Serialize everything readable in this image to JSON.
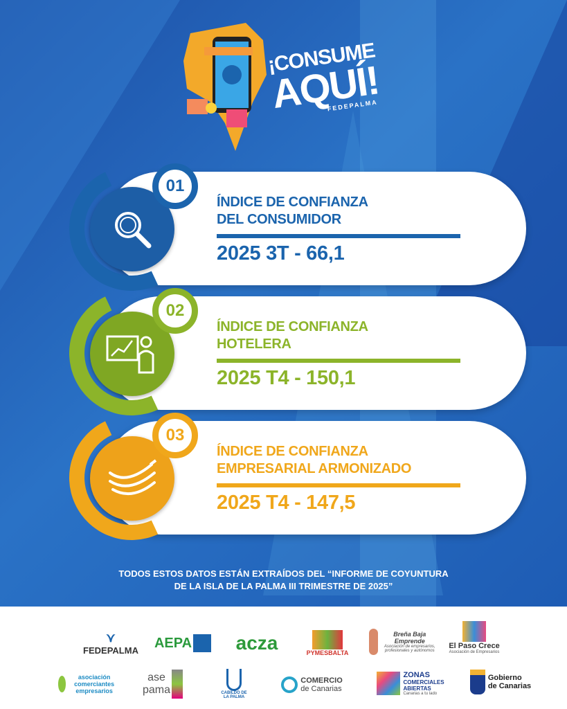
{
  "hero": {
    "line1": "¡CONSUME",
    "line2": "AQUÍ!",
    "line3": "FEDEPALMA"
  },
  "colors": {
    "blue": "#1b64ad",
    "green": "#8cb42a",
    "orange": "#f0a71b",
    "background": "#2466bb"
  },
  "indicators": [
    {
      "number": "01",
      "title_line1": "ÍNDICE DE CONFIANZA",
      "title_line2": "DEL CONSUMIDOR",
      "value": "2025 3T - 66,1",
      "icon": "magnifier-icon"
    },
    {
      "number": "02",
      "title_line1": "ÍNDICE DE CONFIANZA",
      "title_line2": "HOTELERA",
      "value": "2025 T4 - 150,1",
      "icon": "presentation-chart-icon"
    },
    {
      "number": "03",
      "title_line1": "ÍNDICE DE CONFIANZA",
      "title_line2": "EMPRESARIAL ARMONIZADO",
      "value": "2025 T4 - 147,5",
      "icon": "bananas-icon"
    }
  ],
  "footnote": {
    "line1": "TODOS ESTOS DATOS ESTÁN EXTRAÍDOS DEL “INFORME DE COYUNTURA",
    "line2": "DE LA ISLA DE LA PALMA III TRIMESTRE DE 2025”"
  },
  "logos": {
    "fedepalma": "FEDEPALMA",
    "aepa": "AEPA",
    "acza": "acza",
    "pymesbalta": "PYMESBALTA",
    "brena": "Breña Baja Emprende",
    "brena_sub": "Asociación de empresarios, profesionales y autónomos",
    "elpaso": "El Paso Crece",
    "elpaso_sub": "Asociación de Empresarios",
    "asociacion": "asociación comerciantes empresarios",
    "asepama1": "ase",
    "asepama2": "pama",
    "cabildo": "CABILDO DE LA PALMA",
    "comercio1": "COMERCIO",
    "comercio2": "de Canarias",
    "zonas1": "ZONAS",
    "zonas2": "COMERCIALES",
    "zonas3": "ABIERTAS",
    "zonas_sub": "Canarias a tu lado",
    "gobierno1": "Gobierno",
    "gobierno2": "de Canarias"
  }
}
